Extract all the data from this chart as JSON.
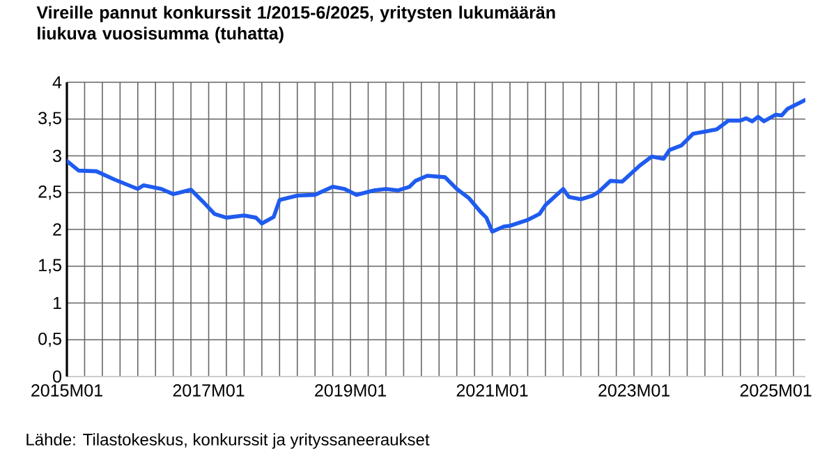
{
  "chart_data": {
    "type": "line",
    "title": "Vireille pannut konkurssit 1/2015-6/2025, yritysten lukumäärän liukuva vuosisumma (tuhatta)",
    "annotations": [
      "Lähde: Tilastokeskus, konkurssit ja yrityssaneeraukset"
    ],
    "x": [
      "2015-01",
      "2015-03",
      "2015-06",
      "2015-09",
      "2016-01",
      "2016-02",
      "2016-05",
      "2016-07",
      "2016-10",
      "2016-12",
      "2017-02",
      "2017-04",
      "2017-07",
      "2017-09",
      "2017-10",
      "2017-12",
      "2018-01",
      "2018-04",
      "2018-07",
      "2018-10",
      "2018-12",
      "2019-02",
      "2019-05",
      "2019-07",
      "2019-09",
      "2019-11",
      "2019-12",
      "2020-02",
      "2020-05",
      "2020-07",
      "2020-09",
      "2020-11",
      "2020-12",
      "2021-01",
      "2021-03",
      "2021-04",
      "2021-07",
      "2021-09",
      "2021-10",
      "2022-01",
      "2022-02",
      "2022-04",
      "2022-06",
      "2022-07",
      "2022-09",
      "2022-11",
      "2023-02",
      "2023-04",
      "2023-06",
      "2023-07",
      "2023-09",
      "2023-11",
      "2024-03",
      "2024-05",
      "2024-07",
      "2024-08",
      "2024-09",
      "2024-10",
      "2024-11",
      "2025-01",
      "2025-02",
      "2025-03",
      "2025-06"
    ],
    "series": [
      {
        "color": "#1f5bef",
        "values": [
          2.93,
          2.8,
          2.79,
          2.68,
          2.55,
          2.6,
          2.55,
          2.48,
          2.54,
          2.38,
          2.21,
          2.16,
          2.19,
          2.16,
          2.08,
          2.17,
          2.4,
          2.46,
          2.47,
          2.58,
          2.55,
          2.47,
          2.53,
          2.55,
          2.53,
          2.58,
          2.66,
          2.73,
          2.71,
          2.55,
          2.43,
          2.24,
          2.16,
          1.97,
          2.04,
          2.05,
          2.13,
          2.21,
          2.33,
          2.55,
          2.44,
          2.41,
          2.46,
          2.51,
          2.66,
          2.65,
          2.87,
          2.99,
          2.96,
          3.08,
          3.14,
          3.3,
          3.36,
          3.48,
          3.48,
          3.51,
          3.47,
          3.53,
          3.47,
          3.56,
          3.55,
          3.64,
          3.76
        ]
      }
    ],
    "xlim": [
      "2015-01",
      "2025-06"
    ],
    "xticks": [
      {
        "value": "2015-01",
        "label": "2015M01"
      },
      {
        "value": "2015-04",
        "label": null
      },
      {
        "value": "2015-07",
        "label": null
      },
      {
        "value": "2015-10",
        "label": null
      },
      {
        "value": "2016-01",
        "label": null
      },
      {
        "value": "2016-04",
        "label": null
      },
      {
        "value": "2016-07",
        "label": null
      },
      {
        "value": "2016-10",
        "label": null
      },
      {
        "value": "2017-01",
        "label": "2017M01"
      },
      {
        "value": "2017-04",
        "label": null
      },
      {
        "value": "2017-07",
        "label": null
      },
      {
        "value": "2017-10",
        "label": null
      },
      {
        "value": "2018-01",
        "label": null
      },
      {
        "value": "2018-04",
        "label": null
      },
      {
        "value": "2018-07",
        "label": null
      },
      {
        "value": "2018-10",
        "label": null
      },
      {
        "value": "2019-01",
        "label": "2019M01"
      },
      {
        "value": "2019-04",
        "label": null
      },
      {
        "value": "2019-07",
        "label": null
      },
      {
        "value": "2019-10",
        "label": null
      },
      {
        "value": "2020-01",
        "label": null
      },
      {
        "value": "2020-04",
        "label": null
      },
      {
        "value": "2020-07",
        "label": null
      },
      {
        "value": "2020-10",
        "label": null
      },
      {
        "value": "2021-01",
        "label": "2021M01"
      },
      {
        "value": "2021-04",
        "label": null
      },
      {
        "value": "2021-07",
        "label": null
      },
      {
        "value": "2021-10",
        "label": null
      },
      {
        "value": "2022-01",
        "label": null
      },
      {
        "value": "2022-04",
        "label": null
      },
      {
        "value": "2022-07",
        "label": null
      },
      {
        "value": "2022-10",
        "label": null
      },
      {
        "value": "2023-01",
        "label": "2023M01"
      },
      {
        "value": "2023-04",
        "label": null
      },
      {
        "value": "2023-07",
        "label": null
      },
      {
        "value": "2023-10",
        "label": null
      },
      {
        "value": "2024-01",
        "label": null
      },
      {
        "value": "2024-04",
        "label": null
      },
      {
        "value": "2024-07",
        "label": null
      },
      {
        "value": "2024-10",
        "label": null
      },
      {
        "value": "2025-01",
        "label": "2025M01"
      },
      {
        "value": "2025-04",
        "label": null
      }
    ],
    "ylim": [
      0,
      4
    ],
    "yticks": [
      0,
      {
        "value": 0.5,
        "label": "0,5"
      },
      1,
      {
        "value": 1.5,
        "label": "1,5"
      },
      2,
      {
        "value": 2.5,
        "label": "2,5"
      },
      3,
      {
        "value": 3.5,
        "label": "3,5"
      },
      4
    ],
    "grid": true
  }
}
